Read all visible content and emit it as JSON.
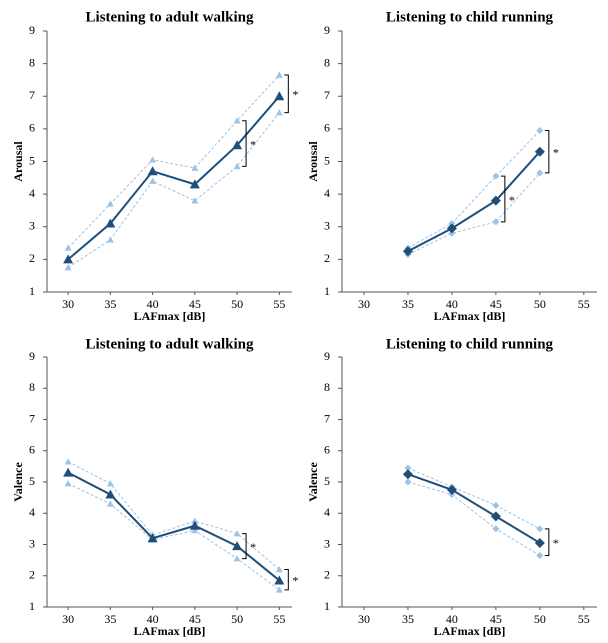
{
  "chart_data": [
    {
      "type": "line",
      "title": "Listening to adult walking",
      "xlabel": "LAFmax [dB]",
      "ylabel": "Arousal",
      "x": [
        30,
        35,
        40,
        45,
        50,
        55
      ],
      "xlim": [
        27.5,
        56.5
      ],
      "xticks": [
        30,
        35,
        40,
        45,
        50,
        55
      ],
      "ylim": [
        1,
        9
      ],
      "yticks": [
        1,
        2,
        3,
        4,
        5,
        6,
        7,
        8,
        9
      ],
      "marker": "triangle",
      "series": [
        {
          "color": "#1f4e79",
          "line_style": "solid",
          "values": [
            2.0,
            3.1,
            4.7,
            4.3,
            5.5,
            7.0
          ]
        },
        {
          "color": "#9dc3e6",
          "line_style": "dashed",
          "values": [
            2.35,
            3.7,
            5.05,
            4.8,
            6.25,
            7.65
          ]
        },
        {
          "color": "#9dc3e6",
          "line_style": "dashed",
          "values": [
            1.75,
            2.6,
            4.4,
            3.8,
            4.85,
            6.5
          ]
        }
      ],
      "annotations": [
        {
          "text": "*",
          "x": 50
        },
        {
          "text": "*",
          "x": 55
        }
      ]
    },
    {
      "type": "line",
      "title": "Listening to child running",
      "xlabel": "LAFmax [dB]",
      "ylabel": "Arousal",
      "x": [
        35,
        40,
        45,
        50
      ],
      "xlim": [
        27.5,
        56.5
      ],
      "xticks": [
        30,
        35,
        40,
        45,
        50,
        55
      ],
      "ylim": [
        1,
        9
      ],
      "yticks": [
        1,
        2,
        3,
        4,
        5,
        6,
        7,
        8,
        9
      ],
      "marker": "diamond",
      "series": [
        {
          "color": "#1f4e79",
          "line_style": "solid",
          "values": [
            2.25,
            2.95,
            3.8,
            5.3
          ]
        },
        {
          "color": "#9dc3e6",
          "line_style": "dashed",
          "values": [
            2.35,
            3.1,
            4.55,
            5.95
          ]
        },
        {
          "color": "#9dc3e6",
          "line_style": "dashed",
          "values": [
            2.15,
            2.8,
            3.15,
            4.65
          ]
        }
      ],
      "annotations": [
        {
          "text": "*",
          "x": 45
        },
        {
          "text": "*",
          "x": 50
        }
      ]
    },
    {
      "type": "line",
      "title": "Listening to adult walking",
      "xlabel": "LAFmax [dB]",
      "ylabel": "Valence",
      "x": [
        30,
        35,
        40,
        45,
        50,
        55
      ],
      "xlim": [
        27.5,
        56.5
      ],
      "xticks": [
        30,
        35,
        40,
        45,
        50,
        55
      ],
      "ylim": [
        1,
        9
      ],
      "yticks": [
        1,
        2,
        3,
        4,
        5,
        6,
        7,
        8,
        9
      ],
      "marker": "triangle",
      "series": [
        {
          "color": "#1f4e79",
          "line_style": "solid",
          "values": [
            5.3,
            4.6,
            3.2,
            3.6,
            2.95,
            1.85
          ]
        },
        {
          "color": "#9dc3e6",
          "line_style": "dashed",
          "values": [
            5.65,
            4.95,
            3.3,
            3.75,
            3.35,
            2.2
          ]
        },
        {
          "color": "#9dc3e6",
          "line_style": "dashed",
          "values": [
            4.95,
            4.3,
            3.15,
            3.45,
            2.55,
            1.55
          ]
        }
      ],
      "annotations": [
        {
          "text": "*",
          "x": 50
        },
        {
          "text": "*",
          "x": 55
        }
      ]
    },
    {
      "type": "line",
      "title": "Listening to child running",
      "xlabel": "LAFmax [dB]",
      "ylabel": "Valence",
      "x": [
        35,
        40,
        45,
        50
      ],
      "xlim": [
        27.5,
        56.5
      ],
      "xticks": [
        30,
        35,
        40,
        45,
        50,
        55
      ],
      "ylim": [
        1,
        9
      ],
      "yticks": [
        1,
        2,
        3,
        4,
        5,
        6,
        7,
        8,
        9
      ],
      "marker": "diamond",
      "series": [
        {
          "color": "#1f4e79",
          "line_style": "solid",
          "values": [
            5.25,
            4.75,
            3.9,
            3.05
          ]
        },
        {
          "color": "#9dc3e6",
          "line_style": "dashed",
          "values": [
            5.45,
            4.85,
            4.25,
            3.5
          ]
        },
        {
          "color": "#9dc3e6",
          "line_style": "dashed",
          "values": [
            5.0,
            4.6,
            3.5,
            2.65
          ]
        }
      ],
      "annotations": [
        {
          "text": "*",
          "x": 50
        }
      ]
    }
  ]
}
